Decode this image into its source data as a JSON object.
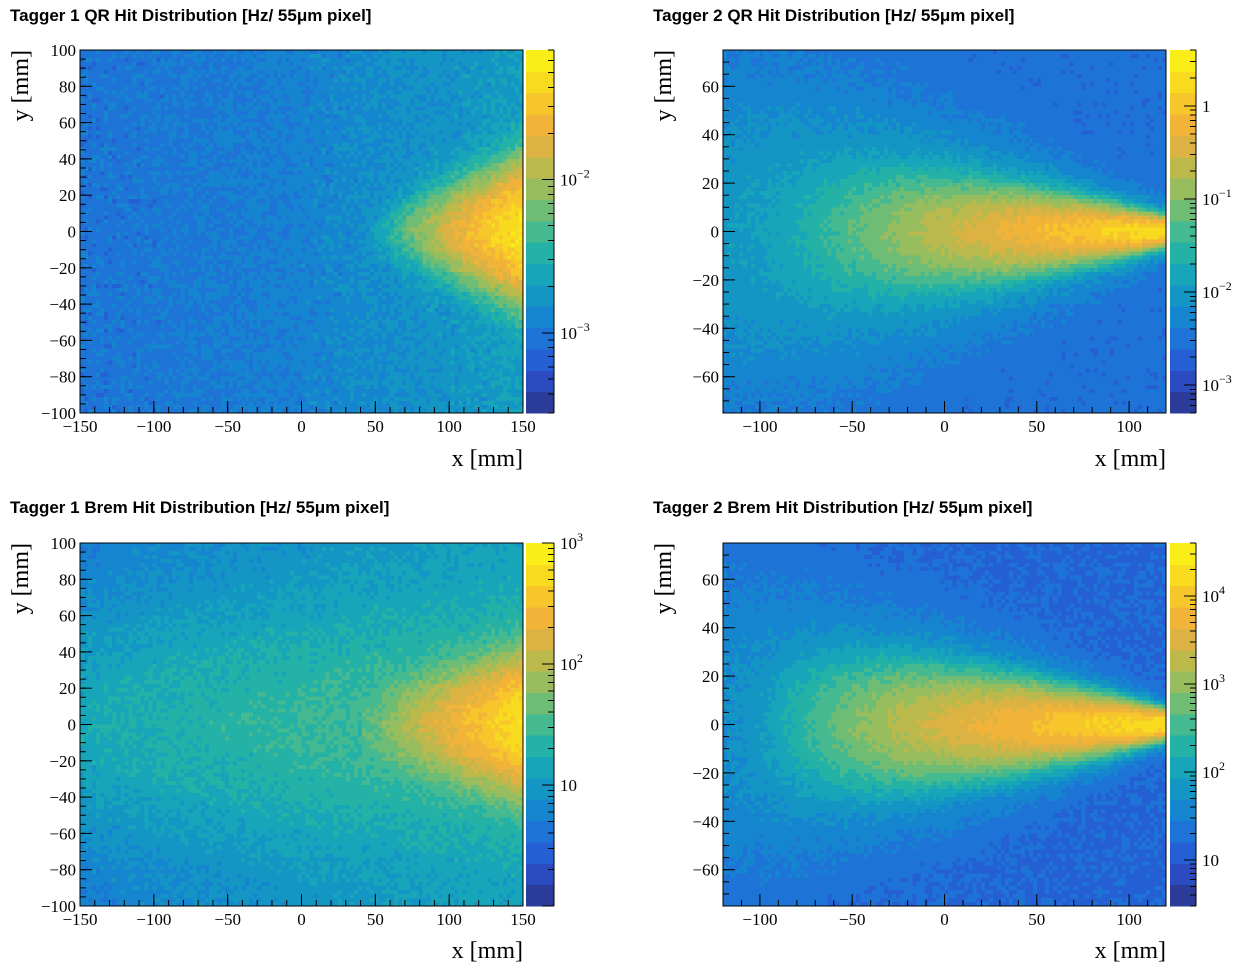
{
  "chart_data": [
    {
      "type": "heatmap",
      "title": "Tagger 1 QR Hit Distribution [Hz/ 55μm pixel]",
      "xlabel": "x [mm]",
      "ylabel": "y [mm]",
      "xlim": [
        -150,
        150
      ],
      "ylim": [
        -100,
        100
      ],
      "x_ticks": [
        -150,
        -100,
        -50,
        0,
        50,
        100,
        150
      ],
      "x_tick_labels": [
        "−150",
        "−100",
        "−50",
        "0",
        "50",
        "100",
        "150"
      ],
      "y_ticks": [
        100,
        80,
        60,
        40,
        20,
        0,
        -20,
        -40,
        -60,
        -80,
        -100
      ],
      "y_tick_labels": [
        "100",
        "80",
        "60",
        "40",
        "20",
        "0",
        "−20",
        "−40",
        "−60",
        "−80",
        "−100"
      ],
      "z_log": true,
      "zlim": [
        0.0003,
        0.07
      ],
      "colorbar_ticks": [
        0.01,
        0.001
      ],
      "colorbar_tick_labels": [
        {
          "base": "10",
          "exp": "−2"
        },
        {
          "base": "10",
          "exp": "−3"
        }
      ],
      "hotspot": {
        "x_start": 38,
        "x_end": 150,
        "y_center": 0,
        "peak": 0.05,
        "background": 0.0012
      }
    },
    {
      "type": "heatmap",
      "title": "Tagger 2 QR Hit Distribution [Hz/ 55μm pixel]",
      "xlabel": "x [mm]",
      "ylabel": "y [mm]",
      "xlim": [
        -120,
        120
      ],
      "ylim": [
        -75,
        75
      ],
      "x_ticks": [
        -100,
        -50,
        0,
        50,
        100
      ],
      "x_tick_labels": [
        "−100",
        "−50",
        "0",
        "50",
        "100"
      ],
      "y_ticks": [
        60,
        40,
        20,
        0,
        -20,
        -40,
        -60
      ],
      "y_tick_labels": [
        "60",
        "40",
        "20",
        "0",
        "−20",
        "−40",
        "−60"
      ],
      "z_log": true,
      "zlim": [
        0.0005,
        4
      ],
      "colorbar_ticks": [
        1,
        0.1,
        0.01,
        0.001
      ],
      "colorbar_tick_labels": [
        {
          "base": "1",
          "exp": ""
        },
        {
          "base": "10",
          "exp": "−1"
        },
        {
          "base": "10",
          "exp": "−2"
        },
        {
          "base": "10",
          "exp": "−3"
        }
      ],
      "hotspot": {
        "x_start": -120,
        "x_end": 120,
        "y_center": 0,
        "peak": 2.0,
        "background": 0.003
      }
    },
    {
      "type": "heatmap",
      "title": "Tagger 1 Brem Hit Distribution [Hz/ 55μm pixel]",
      "xlabel": "x [mm]",
      "ylabel": "y [mm]",
      "xlim": [
        -150,
        150
      ],
      "ylim": [
        -100,
        100
      ],
      "x_ticks": [
        -150,
        -100,
        -50,
        0,
        50,
        100,
        150
      ],
      "x_tick_labels": [
        "−150",
        "−100",
        "−50",
        "0",
        "50",
        "100",
        "150"
      ],
      "y_ticks": [
        100,
        80,
        60,
        40,
        20,
        0,
        -20,
        -40,
        -60,
        -80,
        -100
      ],
      "y_tick_labels": [
        "100",
        "80",
        "60",
        "40",
        "20",
        "0",
        "−20",
        "−40",
        "−60",
        "−80",
        "−100"
      ],
      "z_log": true,
      "zlim": [
        1,
        1000
      ],
      "colorbar_ticks": [
        1000,
        100,
        10
      ],
      "colorbar_tick_labels": [
        {
          "base": "10",
          "exp": "3"
        },
        {
          "base": "10",
          "exp": "2"
        },
        {
          "base": "10",
          "exp": ""
        }
      ],
      "hotspot": {
        "x_start": 40,
        "x_end": 150,
        "y_center": 0,
        "peak": 600,
        "background": 5
      }
    },
    {
      "type": "heatmap",
      "title": "Tagger 2 Brem Hit Distribution [Hz/ 55μm pixel]",
      "xlabel": "x [mm]",
      "ylabel": "y [mm]",
      "xlim": [
        -120,
        120
      ],
      "ylim": [
        -75,
        75
      ],
      "x_ticks": [
        -100,
        -50,
        0,
        50,
        100
      ],
      "x_tick_labels": [
        "−100",
        "−50",
        "0",
        "50",
        "100"
      ],
      "y_ticks": [
        60,
        40,
        20,
        0,
        -20,
        -40,
        -60
      ],
      "y_tick_labels": [
        "60",
        "40",
        "20",
        "0",
        "−20",
        "−40",
        "−60"
      ],
      "z_log": true,
      "zlim": [
        3,
        40000
      ],
      "colorbar_ticks": [
        10000,
        1000,
        100,
        10
      ],
      "colorbar_tick_labels": [
        {
          "base": "10",
          "exp": "4"
        },
        {
          "base": "10",
          "exp": "3"
        },
        {
          "base": "10",
          "exp": "2"
        },
        {
          "base": "10",
          "exp": ""
        }
      ],
      "hotspot": {
        "x_start": -120,
        "x_end": 120,
        "y_center": 0,
        "peak": 20000,
        "background": 15
      }
    }
  ]
}
